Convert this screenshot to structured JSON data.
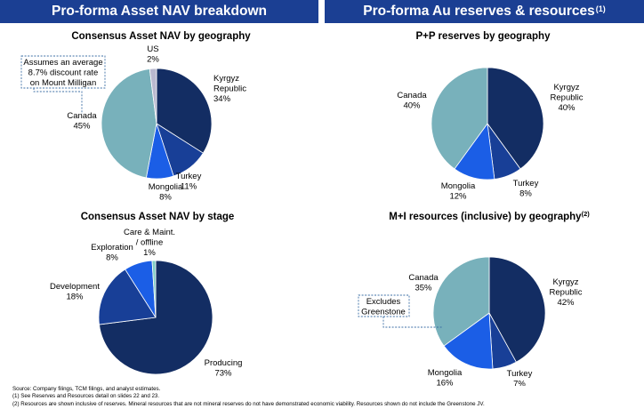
{
  "banners": {
    "left": "Pro-forma Asset NAV breakdown",
    "right": "Pro-forma Au reserves & resources",
    "right_superscript": "(1)"
  },
  "colors": {
    "navy": "#132d63",
    "blue": "#1b5ee6",
    "light_teal": "#78b1bb",
    "lavender": "#b9b9cf",
    "pale_teal": "#7fcdc5",
    "banner": "#1b3f93",
    "annotation_border": "#3d6fa6"
  },
  "annotations": {
    "milligan": [
      "Assumes an average",
      "8.7% discount rate",
      "on Mount Milligan"
    ],
    "greenstone": [
      "Excludes",
      "Greenstone"
    ]
  },
  "chart_data": [
    {
      "type": "pie",
      "title": "Consensus Asset NAV by geography",
      "slices": [
        {
          "label": [
            "Kyrgyz",
            "Republic",
            "34%"
          ],
          "value": 34,
          "color": "#132d63"
        },
        {
          "label": [
            "Turkey",
            "11%"
          ],
          "value": 11,
          "color": "#183f97"
        },
        {
          "label": [
            "Mongolia",
            "8%"
          ],
          "value": 8,
          "color": "#1b5ee6"
        },
        {
          "label": [
            "Canada",
            "45%"
          ],
          "value": 45,
          "color": "#78b1bb"
        },
        {
          "label": [
            "US",
            "2%"
          ],
          "value": 2,
          "color": "#b9b9cf"
        }
      ]
    },
    {
      "type": "pie",
      "title": "Consensus Asset NAV by stage",
      "slices": [
        {
          "label": [
            "Producing",
            "73%"
          ],
          "value": 73,
          "color": "#132d63"
        },
        {
          "label": [
            "Development",
            "18%"
          ],
          "value": 18,
          "color": "#183f97"
        },
        {
          "label": [
            "Exploration",
            "8%"
          ],
          "value": 8,
          "color": "#1b5ee6"
        },
        {
          "label": [
            "Care & Maint.",
            "/ offline",
            "1%"
          ],
          "value": 1,
          "color": "#7fcdc5"
        }
      ]
    },
    {
      "type": "pie",
      "title": "P+P reserves by geography",
      "slices": [
        {
          "label": [
            "Kyrgyz",
            "Republic",
            "40%"
          ],
          "value": 40,
          "color": "#132d63"
        },
        {
          "label": [
            "Turkey",
            "8%"
          ],
          "value": 8,
          "color": "#183f97"
        },
        {
          "label": [
            "Mongolia",
            "12%"
          ],
          "value": 12,
          "color": "#1b5ee6"
        },
        {
          "label": [
            "Canada",
            "40%"
          ],
          "value": 40,
          "color": "#78b1bb"
        }
      ]
    },
    {
      "type": "pie",
      "title": "M+I resources (inclusive) by geography",
      "title_superscript": "(2)",
      "slices": [
        {
          "label": [
            "Kyrgyz",
            "Republic",
            "42%"
          ],
          "value": 42,
          "color": "#132d63"
        },
        {
          "label": [
            "Turkey",
            "7%"
          ],
          "value": 7,
          "color": "#183f97"
        },
        {
          "label": [
            "Mongolia",
            "16%"
          ],
          "value": 16,
          "color": "#1b5ee6"
        },
        {
          "label": [
            "Canada",
            "35%"
          ],
          "value": 35,
          "color": "#78b1bb"
        }
      ]
    }
  ],
  "footnotes": [
    "Source: Company filings, TCM filings, and analyst estimates.",
    "(1) See Reserves and Resources detail on slides 22 and 23.",
    "(2) Resources are shown inclusive of reserves. Mineral resources that are not mineral reserves do not have demonstrated economic viability. Resources shown do not include the Greenstone JV."
  ]
}
